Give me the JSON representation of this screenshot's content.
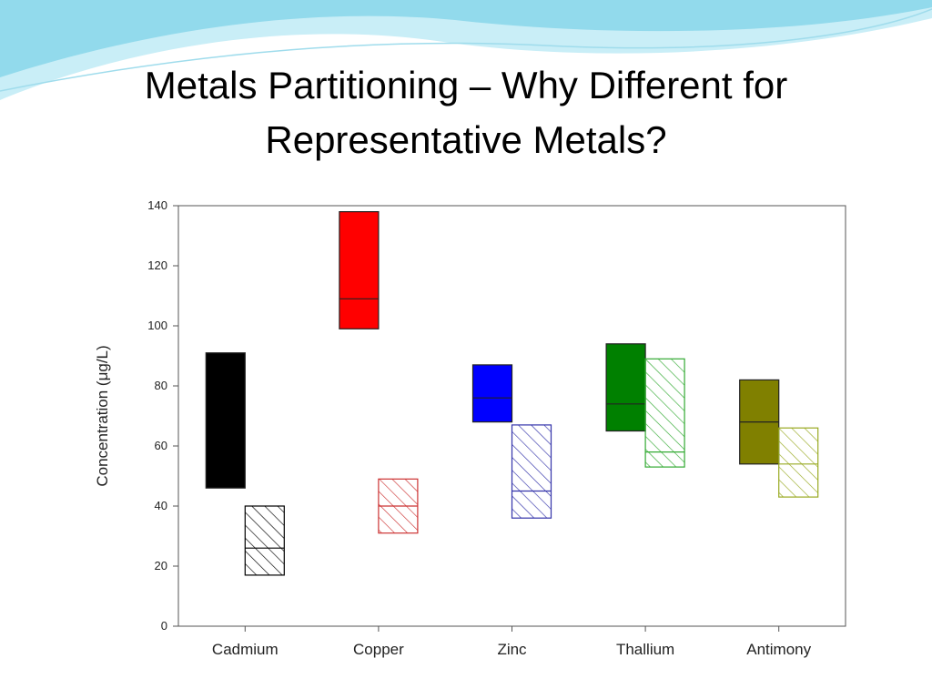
{
  "slide": {
    "title_line1": "Metals Partitioning – Why Different for",
    "title_line2": "Representative Metals?"
  },
  "colors": {
    "header_wave": "#7fd3e8",
    "header_wave_light": "#c9eef7"
  },
  "chart_data": {
    "type": "box",
    "categories": [
      "Cadmium",
      "Copper",
      "Zinc",
      "Thallium",
      "Antimony"
    ],
    "ylabel": "Concentration (μg/L)",
    "xlabel": "",
    "title": "",
    "ylim": [
      0,
      140
    ],
    "yticks": [
      0,
      20,
      40,
      60,
      80,
      100,
      120,
      140
    ],
    "grid": false,
    "series": [
      {
        "style": "solid",
        "boxes": [
          {
            "category": "Cadmium",
            "low": 46,
            "high": 91,
            "median": null,
            "color": "#000000"
          },
          {
            "category": "Copper",
            "low": 99,
            "high": 138,
            "median": 109,
            "color": "#ff0000"
          },
          {
            "category": "Zinc",
            "low": 68,
            "high": 87,
            "median": 76,
            "color": "#0000ff"
          },
          {
            "category": "Thallium",
            "low": 65,
            "high": 94,
            "median": 74,
            "color": "#008000"
          },
          {
            "category": "Antimony",
            "low": 54,
            "high": 82,
            "median": 68,
            "color": "#808000"
          }
        ]
      },
      {
        "style": "hatched",
        "boxes": [
          {
            "category": "Cadmium",
            "low": 17,
            "high": 40,
            "median": 26,
            "color": "#000000"
          },
          {
            "category": "Copper",
            "low": 31,
            "high": 49,
            "median": 40,
            "color": "#cc3333"
          },
          {
            "category": "Zinc",
            "low": 36,
            "high": 67,
            "median": 45,
            "color": "#3333aa"
          },
          {
            "category": "Thallium",
            "low": 53,
            "high": 89,
            "median": 58,
            "color": "#33aa33"
          },
          {
            "category": "Antimony",
            "low": 43,
            "high": 66,
            "median": 54,
            "color": "#99aa22"
          }
        ]
      }
    ]
  }
}
